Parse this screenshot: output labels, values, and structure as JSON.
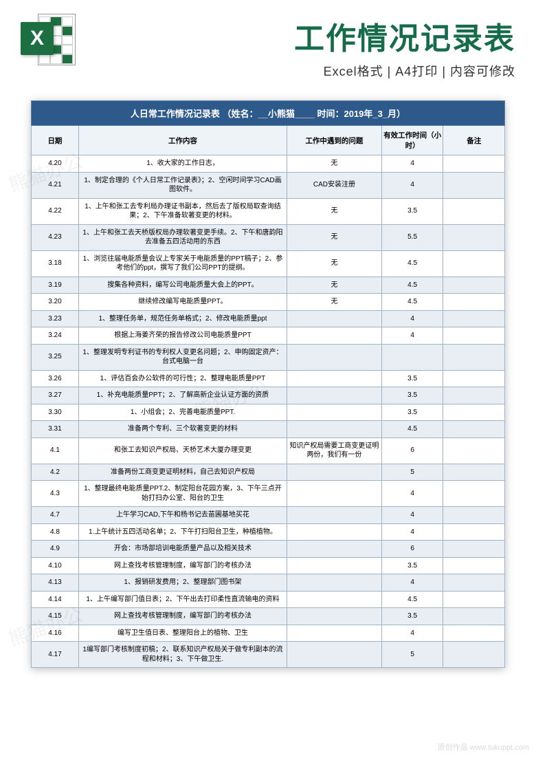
{
  "header": {
    "title": "工作情况记录表",
    "subtitle_parts": [
      "Excel格式",
      "A4打印",
      "内容可修改"
    ],
    "subtitle_sep": " | ",
    "icon_letter": "X"
  },
  "watermark": {
    "text": "熊猫办公",
    "domain": "原创作品 www.tukuppt.com"
  },
  "sheet": {
    "title": "人日常工作情况记录表 （姓名：__小熊猫____   时间：2019年_3_月）",
    "columns": [
      "日期",
      "工作内容",
      "工作中遇到的问题",
      "有效工作时间（小时）",
      "备注"
    ],
    "rows": [
      {
        "date": "4.20",
        "work": "1、收大家的工作日志，",
        "problem": "无",
        "hours": "4",
        "note": ""
      },
      {
        "date": "4.21",
        "work": "1、制定合理的《个人日常工作记录表》；2、空闲时间学习CAD画图软件。",
        "problem": "CAD安装注册",
        "hours": "4",
        "note": ""
      },
      {
        "date": "4.22",
        "work": "1、上午和张工去专利局办理证书副本，然后去了版权局取查询结果；2、下午准备软著变更的材料。",
        "problem": "无",
        "hours": "3.5",
        "note": ""
      },
      {
        "date": "4.23",
        "work": "1、上午和张工去天桥版权局办理软著变更手续。2、下午和唐韵阳去准备五四活动用的东西",
        "problem": "无",
        "hours": "5.5",
        "note": ""
      },
      {
        "date": "3.18",
        "work": "1、浏览往届电能质量会议上专家关于电能质量的PPT稿子；2、参考他们的ppt，撰写了我们公司PPT的提纲。",
        "problem": "无",
        "hours": "4.5",
        "note": ""
      },
      {
        "date": "3.19",
        "work": "搜集各种资料，编写公司电能质量大会上的PPT。",
        "problem": "无",
        "hours": "4.5",
        "note": ""
      },
      {
        "date": "3.20",
        "work": "继续修改编写电能质量PPT。",
        "problem": "无",
        "hours": "4.5",
        "note": ""
      },
      {
        "date": "3.23",
        "work": "1、整理任务单，规范任务单格式；2、修改电能质量ppt",
        "problem": "",
        "hours": "4",
        "note": ""
      },
      {
        "date": "3.24",
        "work": "根据上海姜齐荣的报告修改公司电能质量PPT",
        "problem": "",
        "hours": "4",
        "note": ""
      },
      {
        "date": "3.25",
        "work": "1、整理发明专利证书的专利权人变更名问题；2、申购固定资产：台式电脑一台",
        "problem": "",
        "hours": "",
        "note": ""
      },
      {
        "date": "3.26",
        "work": "1、评估百会办公软件的可行性；2、整理电能质量PPT",
        "problem": "",
        "hours": "3.5",
        "note": ""
      },
      {
        "date": "3.27",
        "work": "1、补充电能质量PPT；2、了解高新企业认证方面的资质",
        "problem": "",
        "hours": "3.5",
        "note": ""
      },
      {
        "date": "3.30",
        "work": "1、小组会；2、完善电能质量PPT.",
        "problem": "",
        "hours": "3.5",
        "note": ""
      },
      {
        "date": "3.31",
        "work": "准备两个专利、三个软著变更的材料",
        "problem": "",
        "hours": "4.5",
        "note": ""
      },
      {
        "date": "4.1",
        "work": "和张工去知识产权局、天桥艺术大厦办理变更",
        "problem": "知识产权局需要工商变更证明两份，我们有一份",
        "hours": "6",
        "note": ""
      },
      {
        "date": "4.2",
        "work": "准备两份工商变更证明材料，自己去知识产权局",
        "problem": "",
        "hours": "5",
        "note": ""
      },
      {
        "date": "4.3",
        "work": "1、整理最终电能质量PPT.2、制定阳台花园方案，3、下午三点开始打扫办公室、阳台的卫生",
        "problem": "",
        "hours": "4",
        "note": ""
      },
      {
        "date": "4.7",
        "work": "上午学习CAD,下午和杨书记去苗圃基地买花",
        "problem": "",
        "hours": "4",
        "note": ""
      },
      {
        "date": "4.8",
        "work": "1.上午统计五四活动名单；2、下午打扫阳台卫生，种植植物。",
        "problem": "",
        "hours": "4",
        "note": ""
      },
      {
        "date": "4.9",
        "work": "开会：市场部培训电能质量产品以及相关技术",
        "problem": "",
        "hours": "6",
        "note": ""
      },
      {
        "date": "4.10",
        "work": "网上查找考核管理制度，编写部门的考核办法",
        "problem": "",
        "hours": "3.5",
        "note": ""
      },
      {
        "date": "4.13",
        "work": "1、报销研发费用；2、整理部门图书架",
        "problem": "",
        "hours": "4",
        "note": ""
      },
      {
        "date": "4.14",
        "work": "1、上午编写部门值日表；2、下午出去打印柔性直流输电的资料",
        "problem": "",
        "hours": "4.5",
        "note": ""
      },
      {
        "date": "4.15",
        "work": "网上查找考核管理制度，编写部门的考核办法",
        "problem": "",
        "hours": "3.5",
        "note": ""
      },
      {
        "date": "4.16",
        "work": "编写卫生值日表、整理阳台上的植物、卫生",
        "problem": "",
        "hours": "4",
        "note": ""
      },
      {
        "date": "4.17",
        "work": "1编写部门考核制度初稿；2、联系知识产权局关于做专利副本的流程和材料；3、下午做卫生.",
        "problem": "",
        "hours": "5",
        "note": ""
      }
    ],
    "colors": {
      "title_bg": "#2d5a8a",
      "header_bg": "#eef3f7",
      "row_even_bg": "#e8eef4",
      "row_odd_bg": "#ffffff",
      "border": "#9db3c7"
    }
  }
}
